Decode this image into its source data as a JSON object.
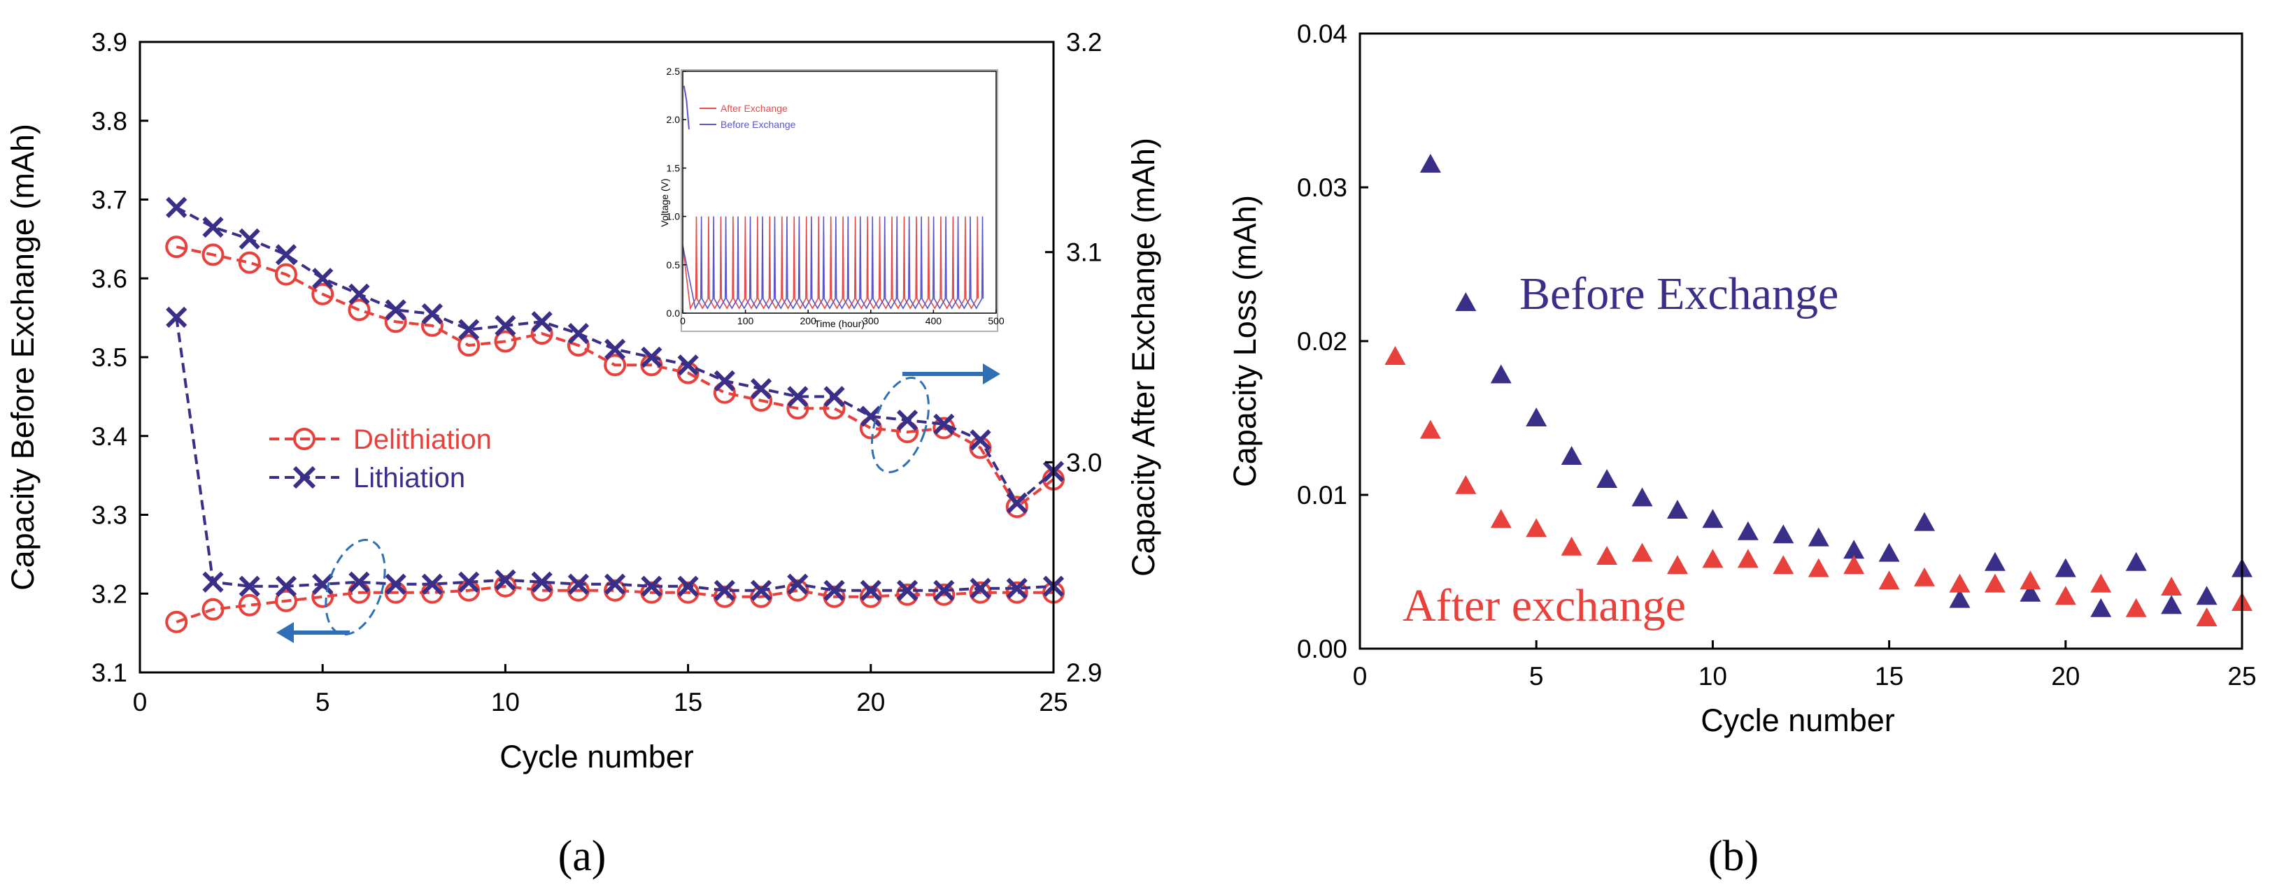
{
  "colors": {
    "red": "#e8413c",
    "navy": "#3a2f88",
    "arrow": "#2f6fb5",
    "inset_red": "#e64a4a",
    "inset_blue": "#5a55cf"
  },
  "chart_data": [
    {
      "type": "line",
      "panel_label": "(a)",
      "xlabel": "Cycle number",
      "ylabel_left": "Capacity Before Exchange (mAh)",
      "ylabel_right": "Capacity After Exchange (mAh)",
      "xlim": [
        0,
        25
      ],
      "ylim_left": [
        3.1,
        3.9
      ],
      "ylim_right": [
        2.9,
        3.2
      ],
      "x_ticks": [
        "0",
        "5",
        "10",
        "15",
        "20",
        "25"
      ],
      "y_ticks_left": [
        "3.1",
        "3.2",
        "3.3",
        "3.4",
        "3.5",
        "3.6",
        "3.7",
        "3.8",
        "3.9"
      ],
      "y_ticks_right": [
        "2.9",
        "3.0",
        "3.1",
        "3.2"
      ],
      "legend": [
        "Delithiation",
        "Lithiation"
      ],
      "series": [
        {
          "name": "Delithiation",
          "axis": "left",
          "marker": "circle",
          "x": [
            1,
            2,
            3,
            4,
            5,
            6,
            7,
            8,
            9,
            10,
            11,
            12,
            13,
            14,
            15,
            16,
            17,
            18,
            19,
            20,
            21,
            22,
            23,
            24,
            25
          ],
          "values": [
            3.64,
            3.63,
            3.62,
            3.605,
            3.58,
            3.56,
            3.545,
            3.54,
            3.515,
            3.52,
            3.53,
            3.515,
            3.49,
            3.49,
            3.48,
            3.455,
            3.445,
            3.435,
            3.435,
            3.41,
            3.405,
            3.41,
            3.385,
            3.31,
            3.345
          ]
        },
        {
          "name": "Lithiation",
          "axis": "left",
          "marker": "x",
          "x": [
            1,
            2,
            3,
            4,
            5,
            6,
            7,
            8,
            9,
            10,
            11,
            12,
            13,
            14,
            15,
            16,
            17,
            18,
            19,
            20,
            21,
            22,
            23,
            24,
            25
          ],
          "values": [
            3.69,
            3.665,
            3.65,
            3.63,
            3.6,
            3.58,
            3.56,
            3.555,
            3.535,
            3.54,
            3.545,
            3.53,
            3.51,
            3.5,
            3.49,
            3.47,
            3.46,
            3.45,
            3.45,
            3.425,
            3.42,
            3.415,
            3.395,
            3.315,
            3.355
          ]
        },
        {
          "name": "Delithiation",
          "axis": "right",
          "marker": "circle",
          "x": [
            1,
            2,
            3,
            4,
            5,
            6,
            7,
            8,
            9,
            10,
            11,
            12,
            13,
            14,
            15,
            16,
            17,
            18,
            19,
            20,
            21,
            22,
            23,
            24,
            25
          ],
          "values": [
            2.924,
            2.93,
            2.932,
            2.934,
            2.936,
            2.938,
            2.938,
            2.938,
            2.939,
            2.941,
            2.939,
            2.939,
            2.939,
            2.938,
            2.938,
            2.936,
            2.936,
            2.939,
            2.936,
            2.936,
            2.937,
            2.937,
            2.938,
            2.938,
            2.938
          ]
        },
        {
          "name": "Lithiation",
          "axis": "right",
          "marker": "x",
          "x": [
            1,
            2,
            3,
            4,
            5,
            6,
            7,
            8,
            9,
            10,
            11,
            12,
            13,
            14,
            15,
            16,
            17,
            18,
            19,
            20,
            21,
            22,
            23,
            24,
            25
          ],
          "values": [
            3.069,
            2.943,
            2.941,
            2.941,
            2.942,
            2.943,
            2.942,
            2.942,
            2.943,
            2.944,
            2.943,
            2.942,
            2.942,
            2.941,
            2.941,
            2.939,
            2.939,
            2.942,
            2.939,
            2.939,
            2.939,
            2.939,
            2.94,
            2.94,
            2.941
          ]
        }
      ],
      "inset": {
        "xlabel": "Time (hour)",
        "ylabel": "Voltage (V)",
        "x_ticks": [
          "0",
          "100",
          "200",
          "300",
          "400",
          "500"
        ],
        "y_ticks": [
          "0.0",
          "0.5",
          "1.0",
          "1.5",
          "2.0",
          "2.5"
        ],
        "legend": [
          "After Exchange",
          "Before Exchange"
        ]
      }
    },
    {
      "type": "scatter",
      "panel_label": "(b)",
      "xlabel": "Cycle number",
      "ylabel": "Capacity Loss (mAh)",
      "xlim": [
        0,
        25
      ],
      "ylim": [
        0,
        0.04
      ],
      "x_ticks": [
        "0",
        "5",
        "10",
        "15",
        "20",
        "25"
      ],
      "y_ticks": [
        "0.00",
        "0.01",
        "0.02",
        "0.03",
        "0.04"
      ],
      "annotations": [
        "Before Exchange",
        "After exchange"
      ],
      "series": [
        {
          "name": "Before Exchange",
          "x": [
            2,
            3,
            4,
            5,
            6,
            7,
            8,
            9,
            10,
            11,
            12,
            13,
            14,
            15,
            16,
            17,
            18,
            19,
            20,
            21,
            22,
            23,
            24,
            25
          ],
          "values": [
            0.0315,
            0.0225,
            0.0178,
            0.015,
            0.0125,
            0.011,
            0.0098,
            0.009,
            0.0084,
            0.0076,
            0.0074,
            0.0072,
            0.0064,
            0.0062,
            0.0082,
            0.0032,
            0.0056,
            0.0036,
            0.0052,
            0.0026,
            0.0056,
            0.0028,
            0.0034,
            0.0052
          ]
        },
        {
          "name": "After exchange",
          "x": [
            1,
            2,
            3,
            4,
            5,
            6,
            7,
            8,
            9,
            10,
            11,
            12,
            13,
            14,
            15,
            16,
            17,
            18,
            19,
            20,
            21,
            22,
            23,
            24,
            25
          ],
          "values": [
            0.019,
            0.0142,
            0.0106,
            0.0084,
            0.0078,
            0.0066,
            0.006,
            0.0062,
            0.0054,
            0.0058,
            0.0058,
            0.0054,
            0.0052,
            0.0054,
            0.0044,
            0.0046,
            0.0042,
            0.0042,
            0.0044,
            0.0034,
            0.0042,
            0.0026,
            0.004,
            0.002,
            0.003
          ]
        }
      ]
    }
  ]
}
